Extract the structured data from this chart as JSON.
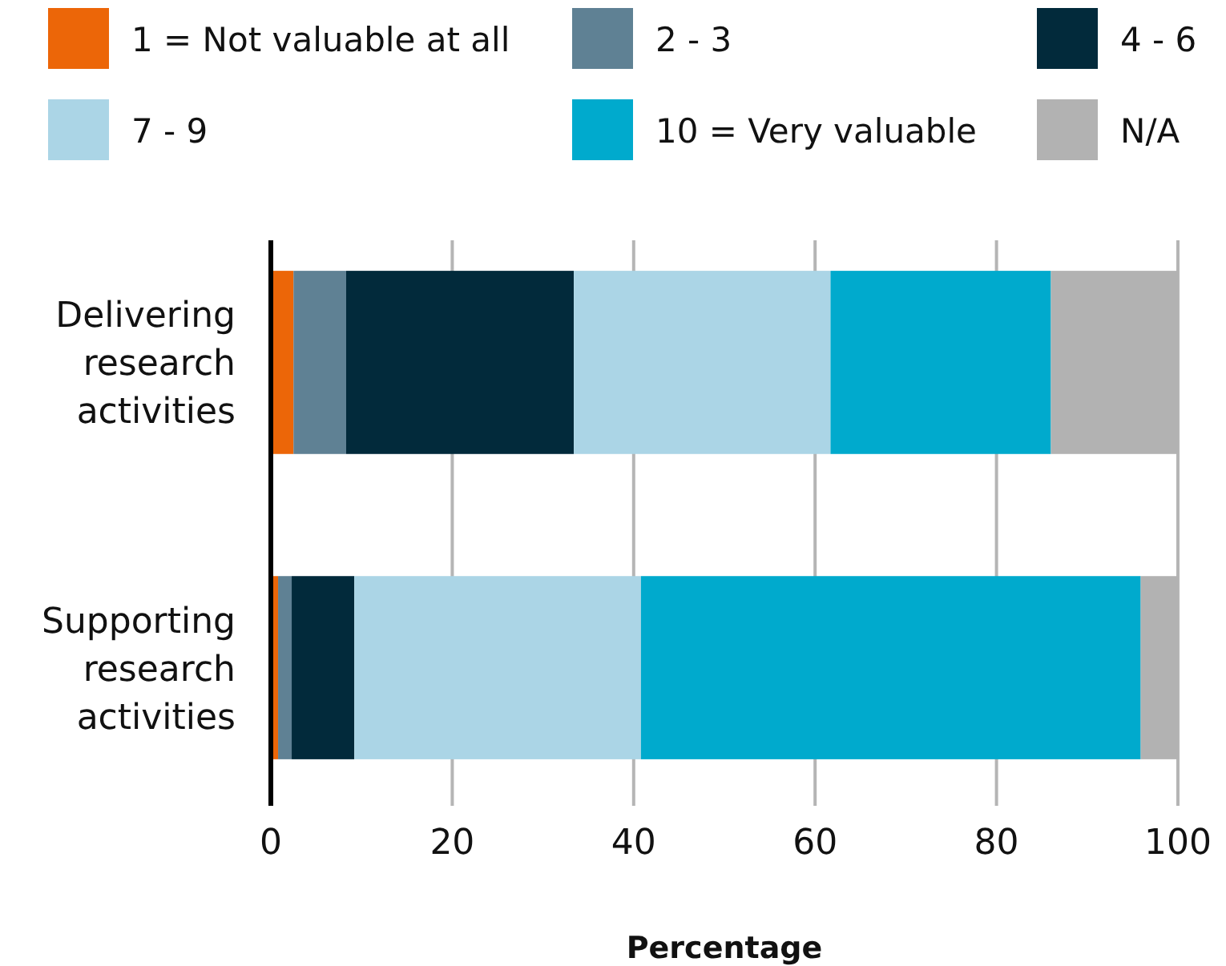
{
  "chart_data": {
    "type": "bar",
    "orientation": "horizontal",
    "stacked": true,
    "xlabel": "Percentage",
    "categories": [
      "Delivering research activities",
      "Supporting research activities"
    ],
    "series": [
      {
        "name": "1 = Not valuable at all",
        "color": "#ec6608",
        "values": [
          2.5,
          0.8
        ]
      },
      {
        "name": "2 - 3",
        "color": "#5f8194",
        "values": [
          5.8,
          1.5
        ]
      },
      {
        "name": "4 - 6",
        "color": "#022a3b",
        "values": [
          25.1,
          6.9
        ]
      },
      {
        "name": "7 - 9",
        "color": "#abd5e6",
        "values": [
          28.3,
          31.6
        ]
      },
      {
        "name": "10 = Very valuable",
        "color": "#00aacd",
        "values": [
          24.3,
          55.1
        ]
      },
      {
        "name": "N/A",
        "color": "#b2b2b2",
        "values": [
          14.0,
          4.1
        ]
      }
    ],
    "xlim": [
      0,
      100
    ],
    "xticks": [
      0,
      20,
      40,
      60,
      80,
      100
    ],
    "grid": "x",
    "legend": "top"
  }
}
